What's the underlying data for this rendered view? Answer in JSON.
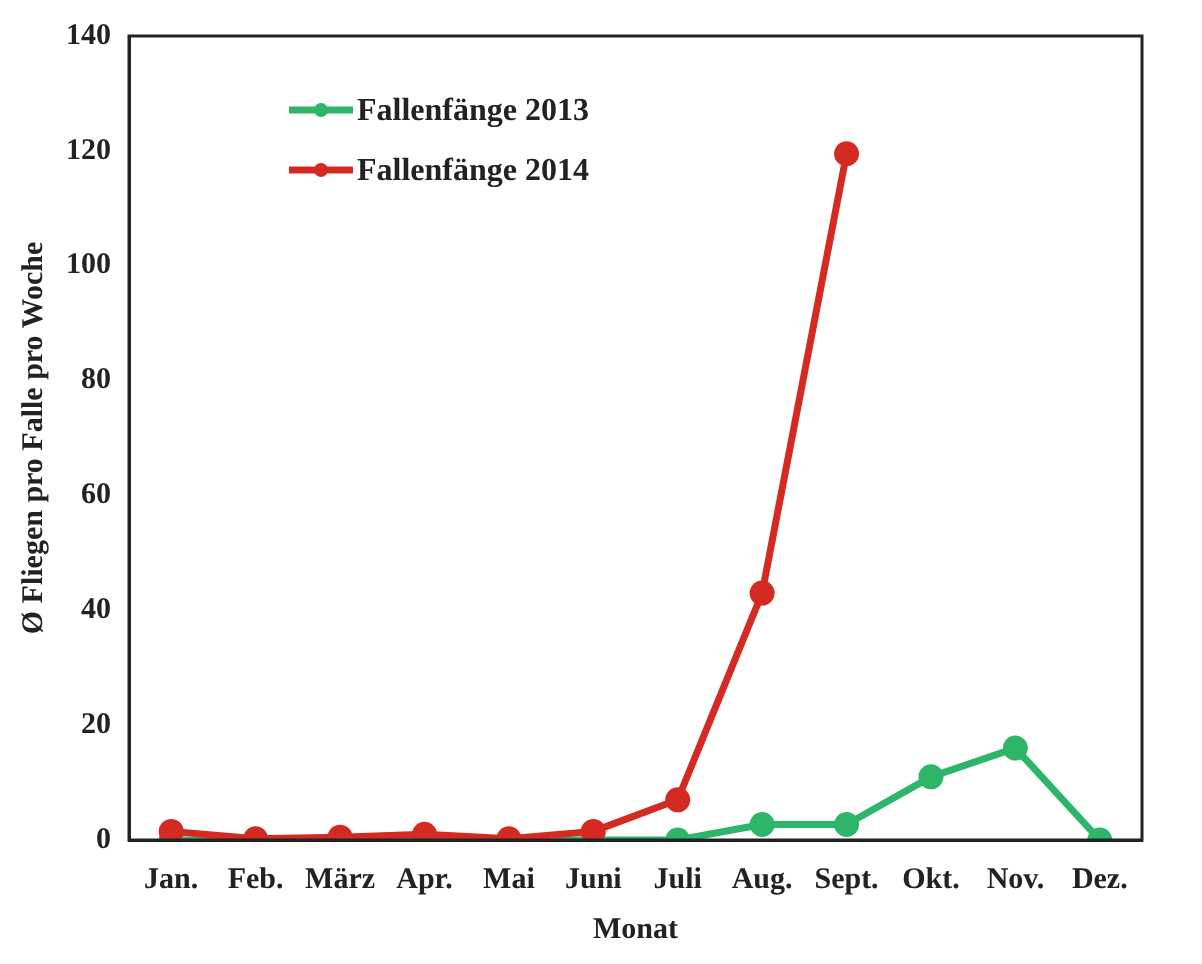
{
  "chart_data": {
    "type": "line",
    "xlabel": "Monat",
    "ylabel": "Ø Fliegen pro Falle pro Woche",
    "categories": [
      "Jan.",
      "Feb.",
      "März",
      "Apr.",
      "Mai",
      "Juni",
      "Juli",
      "Aug.",
      "Sept.",
      "Okt.",
      "Nov.",
      "Dez."
    ],
    "series": [
      {
        "name": "Fallenfänge 2013",
        "color": "#2db56a",
        "values": [
          0,
          0,
          0,
          0,
          0,
          0,
          0,
          2.7,
          2.7,
          11,
          16,
          0
        ]
      },
      {
        "name": "Fallenfänge 2014",
        "color": "#d42a22",
        "values": [
          1.5,
          0.2,
          0.5,
          1,
          0.2,
          1.5,
          7,
          43,
          119.5,
          null,
          null,
          null
        ]
      }
    ],
    "ylim": [
      0,
      140
    ],
    "yticks": [
      0,
      20,
      40,
      60,
      80,
      100,
      120,
      140
    ],
    "grid": false,
    "legend": "top left",
    "marker": "circle",
    "line_style": "solid"
  }
}
